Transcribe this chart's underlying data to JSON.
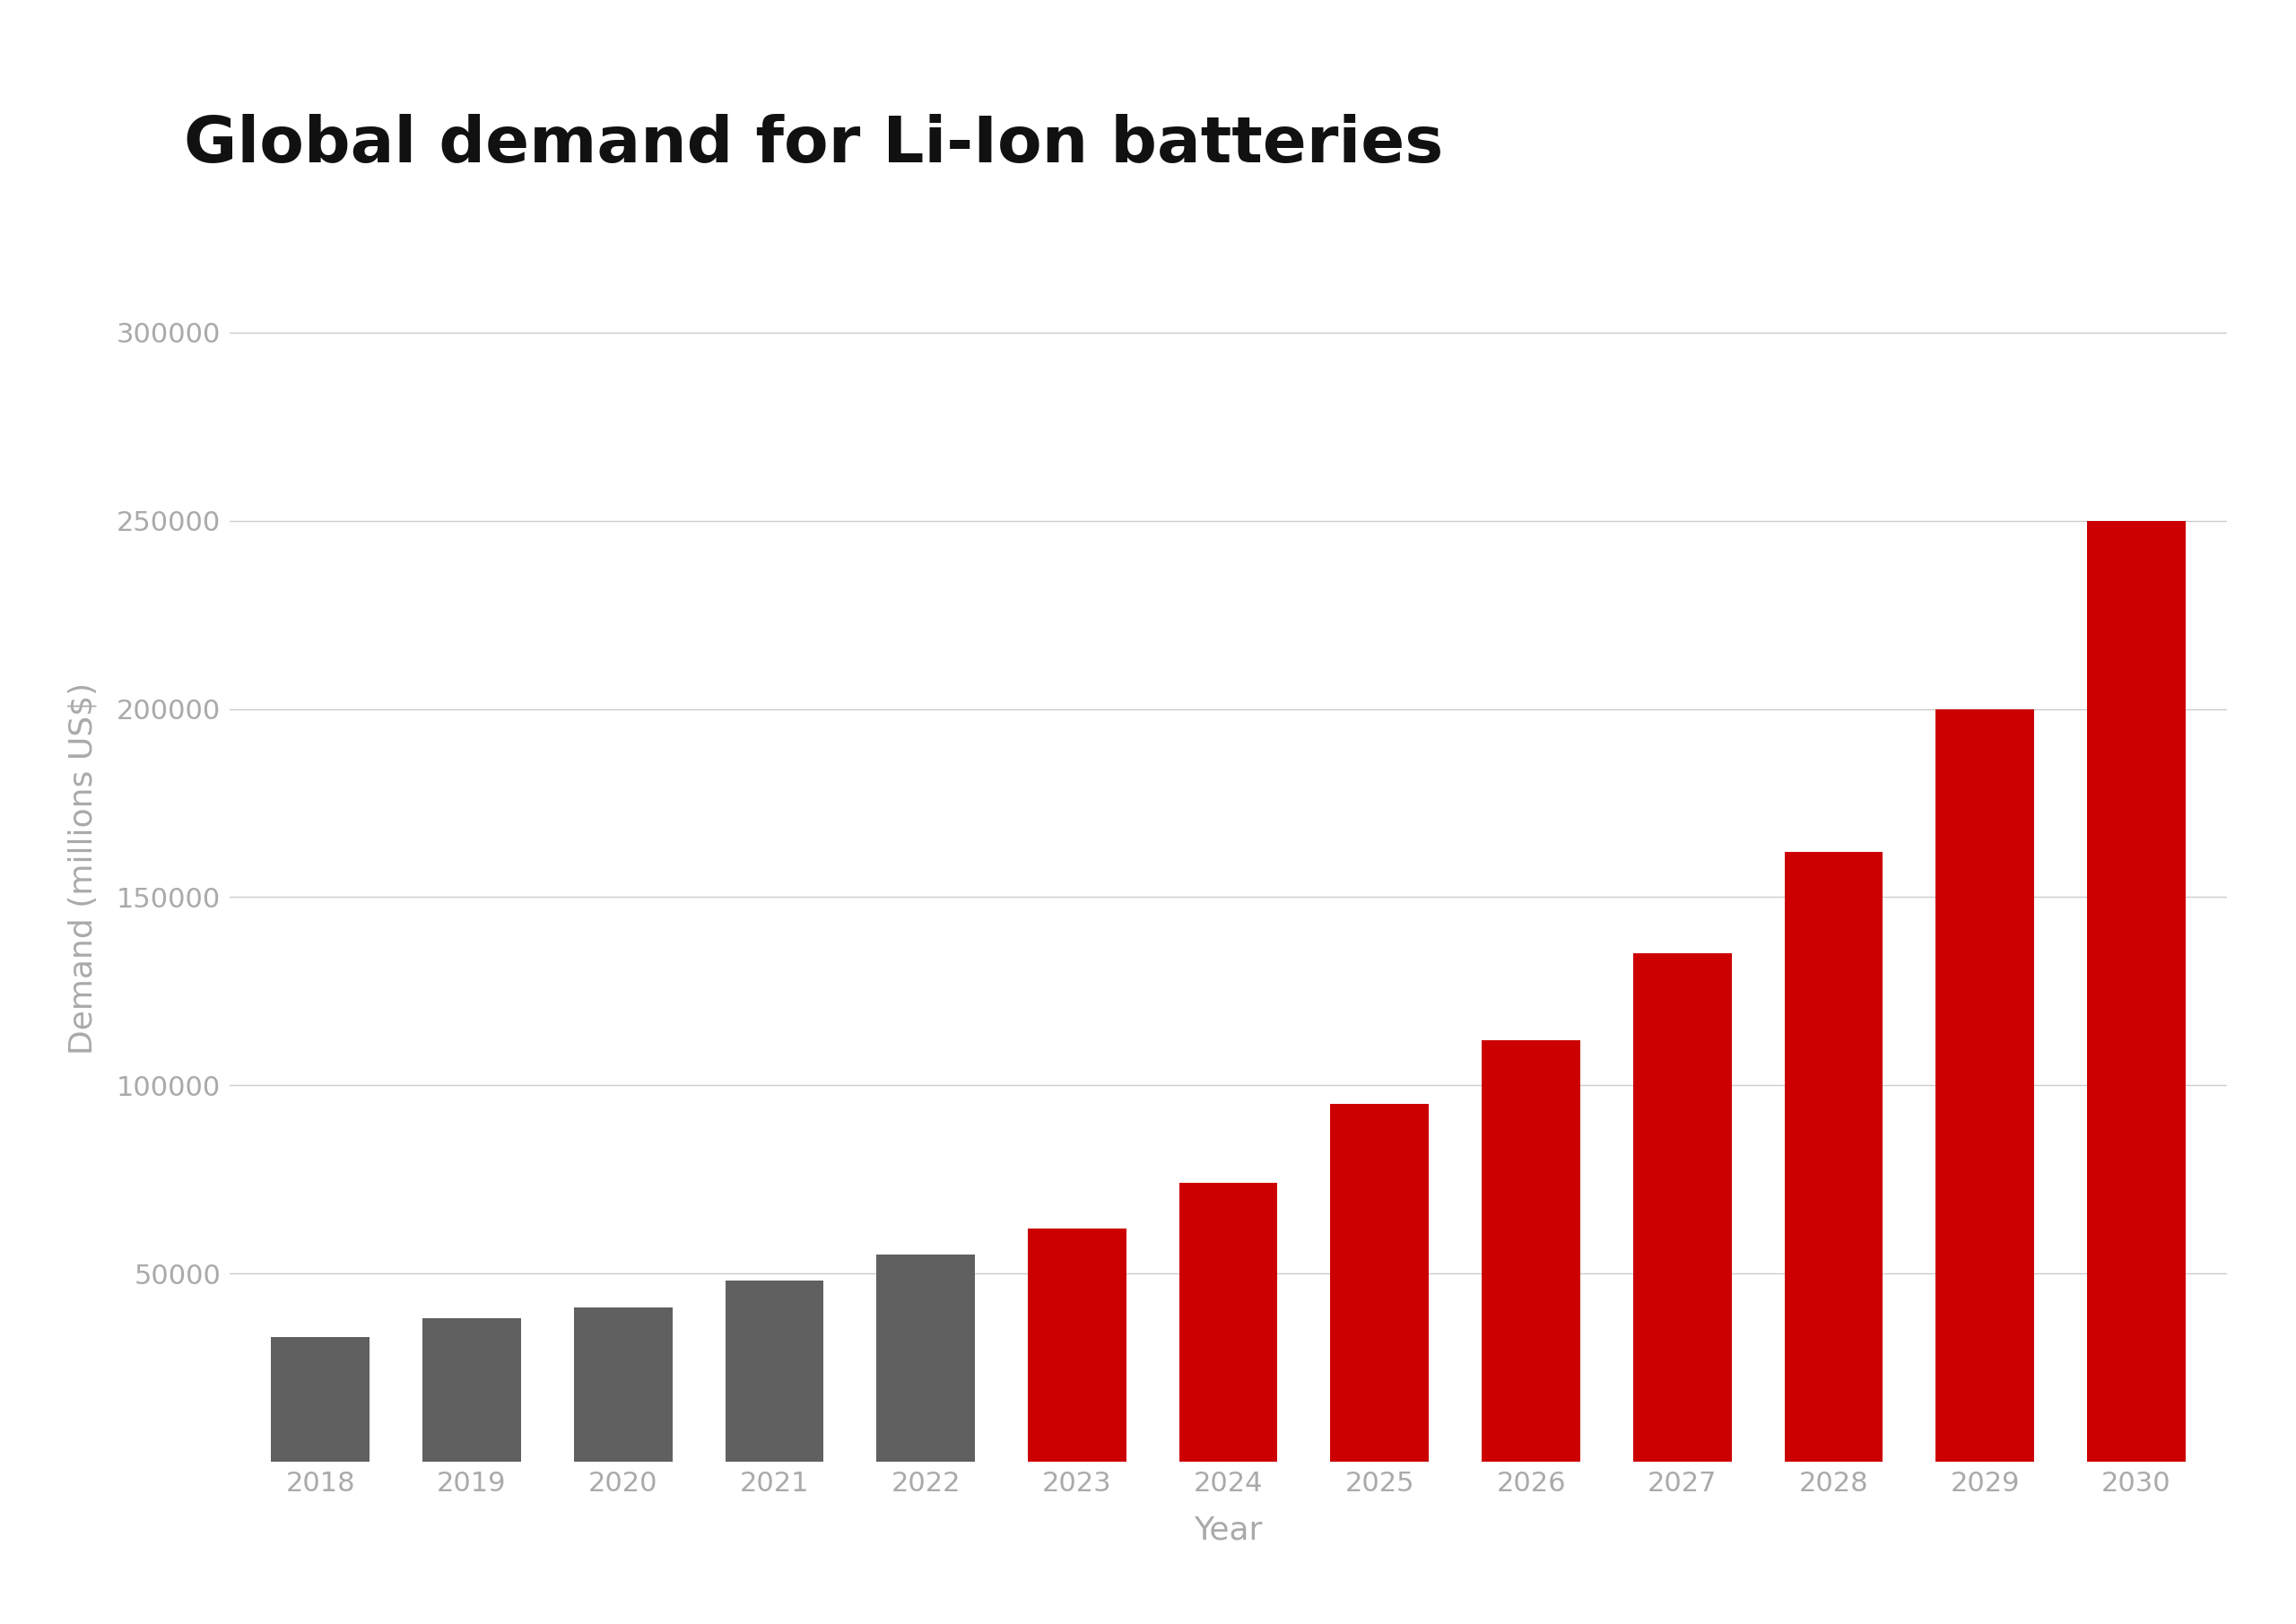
{
  "title": "Global demand for Li-Ion batteries",
  "xlabel": "Year",
  "ylabel": "Demand (millions US$)",
  "categories": [
    2018,
    2019,
    2020,
    2021,
    2022,
    2023,
    2024,
    2025,
    2026,
    2027,
    2028,
    2029,
    2030
  ],
  "values": [
    33000,
    38000,
    41000,
    48000,
    55000,
    62000,
    74000,
    95000,
    112000,
    135000,
    162000,
    200000,
    250000
  ],
  "bar_colors": [
    "#606060",
    "#606060",
    "#606060",
    "#606060",
    "#606060",
    "#cc0000",
    "#cc0000",
    "#cc0000",
    "#cc0000",
    "#cc0000",
    "#cc0000",
    "#cc0000",
    "#cc0000"
  ],
  "ylim": [
    0,
    315000
  ],
  "yticks": [
    50000,
    100000,
    150000,
    200000,
    250000,
    300000
  ],
  "background_color": "#ffffff",
  "title_fontsize": 52,
  "axis_label_fontsize": 26,
  "tick_fontsize": 22,
  "tick_color": "#aaaaaa",
  "xlabel_color": "#aaaaaa",
  "ylabel_color": "#aaaaaa",
  "grid_color": "#cccccc",
  "title_fontweight": "bold",
  "title_color": "#111111"
}
